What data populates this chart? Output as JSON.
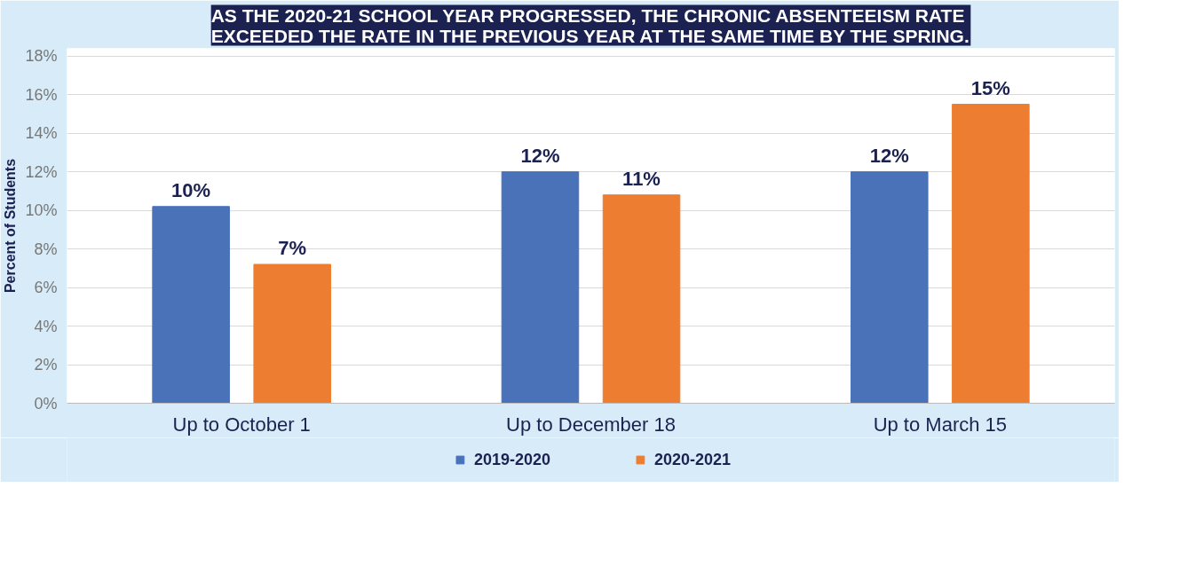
{
  "chart_data": {
    "type": "bar",
    "title": "AS THE 2020-21 SCHOOL YEAR PROGRESSED, THE CHRONIC ABSENTEEISM RATE EXCEEDED THE RATE IN THE PREVIOUS YEAR AT THE SAME TIME BY THE SPRING.",
    "ylabel": "Percent of Students",
    "categories": [
      "Up to October 1",
      "Up to December 18",
      "Up to March 15"
    ],
    "series": [
      {
        "name": "2019-2020",
        "color": "#4a72b8",
        "values": [
          10.2,
          12.0,
          12.0
        ],
        "value_labels": [
          "10%",
          "12%",
          "12%"
        ]
      },
      {
        "name": "2020-2021",
        "color": "#ed7d31",
        "values": [
          7.2,
          10.8,
          15.5
        ],
        "value_labels": [
          "7%",
          "11%",
          "15%"
        ]
      }
    ],
    "ylim": [
      0,
      18.4
    ],
    "yticks": [
      {
        "value": 0,
        "label": "0%"
      },
      {
        "value": 2,
        "label": "2%"
      },
      {
        "value": 4,
        "label": "4%"
      },
      {
        "value": 6,
        "label": "6%"
      },
      {
        "value": 8,
        "label": "8%"
      },
      {
        "value": 10,
        "label": "10%"
      },
      {
        "value": 12,
        "label": "12%"
      },
      {
        "value": 14,
        "label": "14%"
      },
      {
        "value": 16,
        "label": "16%"
      },
      {
        "value": 18,
        "label": "18%"
      }
    ],
    "grid": "y",
    "legend": "bottom"
  }
}
